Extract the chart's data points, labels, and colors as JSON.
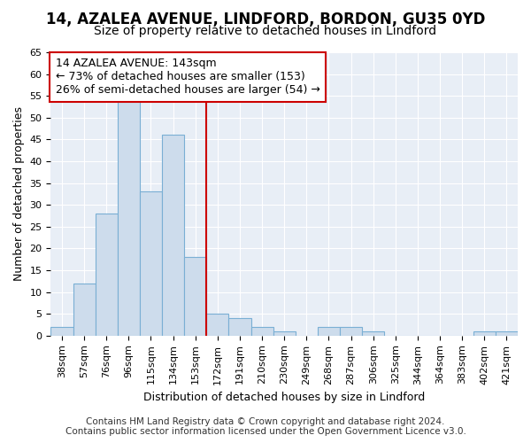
{
  "title1": "14, AZALEA AVENUE, LINDFORD, BORDON, GU35 0YD",
  "title2": "Size of property relative to detached houses in Lindford",
  "xlabel": "Distribution of detached houses by size in Lindford",
  "ylabel": "Number of detached properties",
  "categories": [
    "38sqm",
    "57sqm",
    "76sqm",
    "96sqm",
    "115sqm",
    "134sqm",
    "153sqm",
    "172sqm",
    "191sqm",
    "210sqm",
    "230sqm",
    "249sqm",
    "268sqm",
    "287sqm",
    "306sqm",
    "325sqm",
    "344sqm",
    "364sqm",
    "383sqm",
    "402sqm",
    "421sqm"
  ],
  "values": [
    2,
    12,
    28,
    54,
    33,
    46,
    18,
    5,
    4,
    2,
    1,
    0,
    2,
    2,
    1,
    0,
    0,
    0,
    0,
    1,
    1
  ],
  "bar_color": "#cddcec",
  "bar_edge_color": "#7aafd4",
  "vline_x": 6.5,
  "vline_color": "#cc0000",
  "annotation_text": "14 AZALEA AVENUE: 143sqm\n← 73% of detached houses are smaller (153)\n26% of semi-detached houses are larger (54) →",
  "annotation_box_color": "white",
  "annotation_box_edge": "#cc0000",
  "ylim": [
    0,
    65
  ],
  "yticks": [
    0,
    5,
    10,
    15,
    20,
    25,
    30,
    35,
    40,
    45,
    50,
    55,
    60,
    65
  ],
  "background_color": "#e8eef6",
  "footer1": "Contains HM Land Registry data © Crown copyright and database right 2024.",
  "footer2": "Contains public sector information licensed under the Open Government Licence v3.0.",
  "title1_fontsize": 12,
  "title2_fontsize": 10,
  "xlabel_fontsize": 9,
  "ylabel_fontsize": 9,
  "tick_fontsize": 8,
  "annotation_fontsize": 9,
  "footer_fontsize": 7.5
}
